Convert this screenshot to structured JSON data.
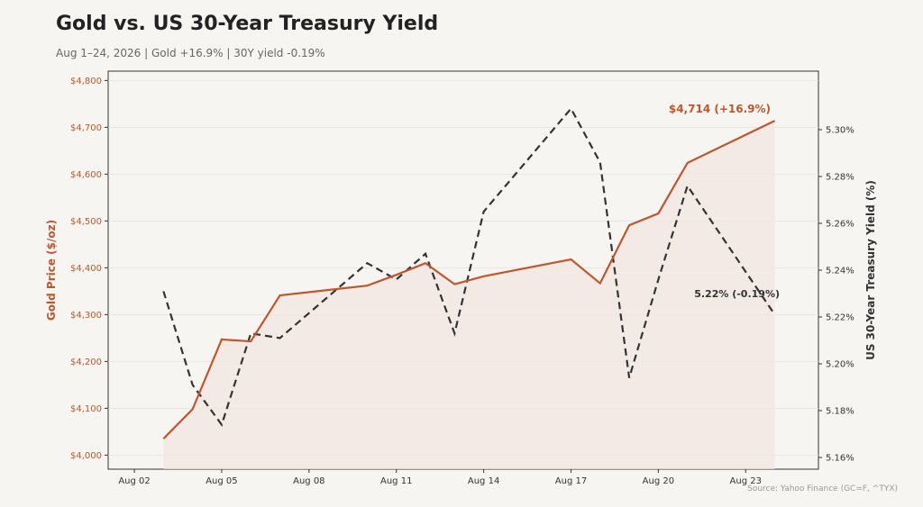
{
  "header": {
    "title": "Gold vs. US 30-Year Treasury Yield",
    "subtitle": "Aug 1–24, 2026  |  Gold +16.9%  |  30Y yield -0.19%",
    "source": "Source: Yahoo Finance (GC=F, ^TYX)"
  },
  "colors": {
    "gold": "#c0562e",
    "yield": "#333333",
    "background": "#f7f5f2",
    "fill": "#f3e6e0"
  },
  "chart_data": {
    "type": "line",
    "title": "Gold vs. US 30-Year Treasury Yield",
    "x_ticks": [
      "Aug 02",
      "Aug 05",
      "Aug 08",
      "Aug 11",
      "Aug 14",
      "Aug 17",
      "Aug 20",
      "Aug 23"
    ],
    "x_tick_days": [
      2,
      5,
      8,
      11,
      14,
      17,
      20,
      23
    ],
    "x_range_days": [
      1.1,
      25.5
    ],
    "left_axis": {
      "label": "Gold Price ($/oz)",
      "range": [
        3970,
        4820
      ],
      "ticks": [
        4000,
        4100,
        4200,
        4300,
        4400,
        4500,
        4600,
        4700,
        4800
      ],
      "tick_labels": [
        "$4,000",
        "$4,100",
        "$4,200",
        "$4,300",
        "$4,400",
        "$4,500",
        "$4,600",
        "$4,700",
        "$4,800"
      ]
    },
    "right_axis": {
      "label": "US 30-Year Treasury Yield (%)",
      "range": [
        5.155,
        5.325
      ],
      "ticks": [
        5.16,
        5.18,
        5.2,
        5.22,
        5.24,
        5.26,
        5.28,
        5.3
      ],
      "tick_labels": [
        "5.16%",
        "5.18%",
        "5.20%",
        "5.22%",
        "5.24%",
        "5.26%",
        "5.28%",
        "5.30%"
      ]
    },
    "series": [
      {
        "name": "Gold",
        "axis": "left",
        "days": [
          3,
          4,
          5,
          6,
          7,
          10,
          11,
          12,
          13,
          14,
          17,
          18,
          19,
          20,
          21,
          24
        ],
        "values": [
          4035,
          4098,
          4247,
          4243,
          4341,
          4362,
          4385,
          4410,
          4365,
          4382,
          4418,
          4367,
          4491,
          4516,
          4624,
          4714
        ]
      },
      {
        "name": "30Y yield",
        "axis": "right",
        "days": [
          3,
          4,
          5,
          6,
          7,
          10,
          11,
          12,
          13,
          14,
          17,
          18,
          19,
          20,
          21,
          24
        ],
        "values": [
          5.231,
          5.191,
          5.174,
          5.213,
          5.211,
          5.243,
          5.236,
          5.247,
          5.213,
          5.265,
          5.309,
          5.286,
          5.194,
          5.236,
          5.276,
          5.221
        ]
      }
    ],
    "annotations": {
      "gold_end": "$4,714 (+16.9%)",
      "yield_end": "5.22% (-0.19%)"
    },
    "grid": "horizontal"
  }
}
